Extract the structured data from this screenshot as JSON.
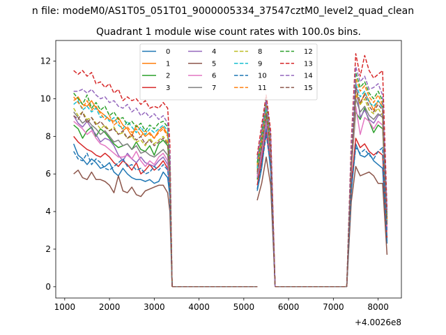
{
  "figure": {
    "suptitle": "n file: modeM0/AS1T05_051T01_9000005334_37547cztM0_level2_quad_clean",
    "offset_text": "+4.0026e8"
  },
  "chart_data": {
    "type": "line",
    "title": "Quadrant 1 module wise count rates with 100.0s bins.",
    "xlabel": "",
    "ylabel": "",
    "x_offset": 400260000,
    "xlim": [
      800,
      8520
    ],
    "ylim": [
      -0.6,
      13.1
    ],
    "xticks": [
      1000,
      2000,
      3000,
      4000,
      5000,
      6000,
      7000,
      8000
    ],
    "yticks": [
      0,
      2,
      4,
      6,
      8,
      10,
      12
    ],
    "grid": false,
    "legend": {
      "placement": "top-center",
      "columns": 4
    },
    "segment_x": [
      [
        1200,
        1300,
        1400,
        1500,
        1600,
        1700,
        1800,
        1900,
        2000,
        2100,
        2200,
        2300,
        2400,
        2500,
        2600,
        2700,
        2800,
        2900,
        3000,
        3100,
        3200,
        3300,
        3350,
        3400
      ],
      [
        3400,
        5300
      ],
      [
        5300,
        5400,
        5500,
        5600,
        5700
      ],
      [
        5700,
        7300
      ],
      [
        7300,
        7400,
        7500,
        7600,
        7700,
        7800,
        7900,
        8000,
        8100,
        8200
      ]
    ],
    "series": [
      {
        "name": "0",
        "color": "#1f77b4",
        "dash": "solid",
        "segments": [
          [
            7.6,
            7.0,
            6.8,
            6.5,
            6.8,
            6.6,
            6.3,
            6.4,
            6.6,
            6.1,
            5.9,
            6.3,
            6.0,
            5.8,
            5.7,
            5.7,
            5.6,
            5.7,
            5.5,
            5.6,
            6.1,
            5.8,
            4.8,
            0
          ],
          [
            0,
            0
          ],
          [
            5.1,
            6.3,
            8.4,
            6.2,
            0
          ],
          [
            0,
            0
          ],
          [
            0,
            5.0,
            7.6,
            7.0,
            6.9,
            7.1,
            6.7,
            6.5,
            6.3,
            2.3
          ]
        ]
      },
      {
        "name": "1",
        "color": "#ff7f0e",
        "dash": "solid",
        "segments": [
          [
            9.9,
            10.1,
            9.7,
            9.6,
            9.9,
            9.5,
            9.3,
            9.1,
            8.9,
            8.8,
            9.0,
            8.6,
            8.4,
            8.0,
            8.6,
            8.3,
            8.0,
            8.2,
            7.9,
            8.3,
            8.5,
            8.1,
            6.5,
            0
          ],
          [
            0,
            0
          ],
          [
            6.4,
            7.8,
            9.6,
            7.5,
            0
          ],
          [
            0,
            0
          ],
          [
            0,
            6.6,
            10.2,
            9.7,
            10.3,
            9.9,
            9.4,
            9.9,
            9.6,
            3.6
          ]
        ]
      },
      {
        "name": "2",
        "color": "#2ca02c",
        "dash": "solid",
        "segments": [
          [
            8.6,
            8.4,
            7.9,
            8.3,
            8.5,
            8.0,
            8.4,
            8.2,
            7.9,
            7.6,
            7.4,
            7.5,
            7.6,
            7.3,
            7.7,
            7.3,
            7.2,
            7.5,
            7.0,
            7.6,
            7.8,
            7.5,
            6.0,
            0
          ],
          [
            0,
            0
          ],
          [
            5.7,
            7.1,
            8.8,
            6.8,
            0
          ],
          [
            0,
            0
          ],
          [
            0,
            6.2,
            9.3,
            8.9,
            9.5,
            8.8,
            8.2,
            8.6,
            8.4,
            3.1
          ]
        ]
      },
      {
        "name": "3",
        "color": "#d62728",
        "dash": "solid",
        "segments": [
          [
            8.0,
            7.7,
            7.5,
            7.3,
            7.2,
            7.0,
            6.9,
            7.1,
            6.9,
            6.6,
            6.4,
            6.7,
            6.5,
            6.2,
            6.6,
            6.0,
            6.2,
            6.5,
            6.2,
            6.4,
            6.7,
            6.3,
            5.2,
            0
          ],
          [
            0,
            0
          ],
          [
            5.4,
            6.7,
            8.2,
            6.6,
            0
          ],
          [
            0,
            0
          ],
          [
            0,
            5.4,
            7.9,
            7.4,
            7.6,
            7.2,
            7.0,
            7.2,
            7.0,
            2.6
          ]
        ]
      },
      {
        "name": "4",
        "color": "#9467bd",
        "dash": "solid",
        "segments": [
          [
            9.1,
            8.7,
            8.5,
            8.8,
            8.4,
            8.1,
            7.7,
            7.9,
            7.8,
            7.5,
            7.0,
            6.7,
            7.1,
            6.8,
            6.6,
            6.9,
            6.6,
            6.5,
            6.4,
            6.7,
            6.9,
            6.5,
            5.3,
            0
          ],
          [
            0,
            0
          ],
          [
            5.8,
            7.0,
            8.7,
            6.9,
            0
          ],
          [
            0,
            0
          ],
          [
            0,
            6.0,
            10.9,
            9.0,
            9.4,
            8.9,
            8.7,
            9.1,
            9.2,
            3.0
          ]
        ]
      },
      {
        "name": "5",
        "color": "#8c564b",
        "dash": "solid",
        "segments": [
          [
            6.0,
            6.2,
            5.8,
            5.7,
            6.1,
            5.7,
            5.7,
            5.6,
            5.4,
            5.0,
            5.9,
            5.1,
            5.0,
            5.3,
            4.9,
            4.8,
            5.1,
            5.2,
            5.3,
            5.4,
            5.4,
            5.0,
            4.0,
            0
          ],
          [
            0,
            0
          ],
          [
            4.6,
            5.5,
            6.9,
            5.4,
            0
          ],
          [
            0,
            0
          ],
          [
            0,
            4.5,
            6.4,
            5.9,
            6.0,
            6.1,
            5.9,
            5.5,
            5.5,
            1.7
          ]
        ]
      },
      {
        "name": "6",
        "color": "#e377c2",
        "dash": "solid",
        "segments": [
          [
            8.8,
            8.6,
            8.4,
            8.1,
            8.3,
            7.9,
            7.6,
            7.5,
            7.3,
            7.1,
            6.9,
            6.9,
            7.0,
            6.8,
            7.2,
            6.7,
            6.4,
            6.7,
            6.5,
            6.9,
            7.1,
            6.7,
            5.4,
            0
          ],
          [
            0,
            0
          ],
          [
            5.9,
            7.2,
            8.9,
            6.9,
            0
          ],
          [
            0,
            0
          ],
          [
            0,
            6.1,
            9.6,
            8.1,
            9.0,
            8.8,
            8.4,
            8.8,
            8.6,
            3.2
          ]
        ]
      },
      {
        "name": "7",
        "color": "#7f7f7f",
        "dash": "solid",
        "segments": [
          [
            9.3,
            9.0,
            8.7,
            8.9,
            8.6,
            8.4,
            8.1,
            8.3,
            8.0,
            7.7,
            7.8,
            7.5,
            7.6,
            7.3,
            7.5,
            7.1,
            7.2,
            7.0,
            6.9,
            7.1,
            7.3,
            7.0,
            5.7,
            0
          ],
          [
            0,
            0
          ],
          [
            6.0,
            7.4,
            9.1,
            7.1,
            0
          ],
          [
            0,
            0
          ],
          [
            0,
            6.3,
            10.0,
            9.3,
            9.6,
            9.1,
            8.9,
            9.2,
            9.0,
            3.3
          ]
        ]
      },
      {
        "name": "8",
        "color": "#bcbd22",
        "dash": "dash",
        "segments": [
          [
            9.5,
            9.1,
            9.3,
            8.9,
            9.0,
            8.7,
            8.4,
            8.6,
            8.3,
            8.5,
            8.1,
            8.2,
            7.9,
            8.0,
            7.7,
            7.8,
            7.5,
            7.9,
            7.6,
            7.8,
            8.0,
            7.7,
            6.1,
            0
          ],
          [
            0,
            0
          ],
          [
            6.2,
            7.6,
            9.3,
            7.3,
            0
          ],
          [
            0,
            0
          ],
          [
            0,
            6.5,
            10.4,
            9.7,
            10.0,
            9.4,
            9.2,
            9.5,
            9.1,
            3.4
          ]
        ]
      },
      {
        "name": "9",
        "color": "#17becf",
        "dash": "dash",
        "segments": [
          [
            9.7,
            9.9,
            9.4,
            9.6,
            9.3,
            9.5,
            9.0,
            9.1,
            8.8,
            9.0,
            8.6,
            8.4,
            8.8,
            8.5,
            8.2,
            8.5,
            8.1,
            8.4,
            8.2,
            8.4,
            8.6,
            8.3,
            6.6,
            0
          ],
          [
            0,
            0
          ],
          [
            6.3,
            7.8,
            9.5,
            7.4,
            0
          ],
          [
            0,
            0
          ],
          [
            0,
            6.7,
            10.8,
            10.1,
            10.4,
            9.8,
            9.6,
            9.9,
            9.5,
            3.5
          ]
        ]
      },
      {
        "name": "10",
        "color": "#1f77b4",
        "dash": "dash",
        "segments": [
          [
            7.2,
            6.8,
            6.7,
            7.1,
            6.5,
            6.8,
            6.6,
            6.3,
            6.2,
            6.4,
            6.6,
            6.8,
            6.4,
            6.5,
            6.2,
            6.3,
            6.0,
            6.1,
            6.4,
            6.2,
            6.5,
            6.2,
            5.0,
            0
          ],
          [
            0,
            0
          ],
          [
            5.2,
            6.4,
            8.1,
            6.4,
            0
          ],
          [
            0,
            0
          ],
          [
            0,
            5.2,
            7.4,
            7.1,
            7.3,
            7.0,
            6.8,
            7.2,
            7.4,
            2.4
          ]
        ]
      },
      {
        "name": "11",
        "color": "#ff7f0e",
        "dash": "dash",
        "segments": [
          [
            10.1,
            9.8,
            9.5,
            9.9,
            9.4,
            9.6,
            9.2,
            8.9,
            9.1,
            8.6,
            8.8,
            8.3,
            8.5,
            8.2,
            8.4,
            8.0,
            8.3,
            8.1,
            7.9,
            8.2,
            8.4,
            8.0,
            6.4,
            0
          ],
          [
            0,
            0
          ],
          [
            6.5,
            7.9,
            9.9,
            7.6,
            0
          ],
          [
            0,
            0
          ],
          [
            0,
            6.9,
            11.1,
            10.4,
            10.7,
            10.1,
            9.8,
            10.2,
            9.7,
            3.6
          ]
        ]
      },
      {
        "name": "12",
        "color": "#2ca02c",
        "dash": "dash",
        "segments": [
          [
            10.3,
            10.0,
            9.7,
            10.2,
            9.5,
            9.8,
            9.4,
            9.6,
            9.1,
            9.3,
            8.9,
            9.0,
            8.6,
            8.8,
            8.5,
            8.7,
            8.3,
            8.6,
            8.4,
            8.7,
            8.8,
            8.5,
            6.8,
            0
          ],
          [
            0,
            0
          ],
          [
            6.6,
            8.1,
            10.0,
            7.8,
            0
          ],
          [
            0,
            0
          ],
          [
            0,
            7.1,
            11.4,
            10.6,
            10.9,
            10.3,
            10.0,
            10.4,
            9.9,
            3.7
          ]
        ]
      },
      {
        "name": "13",
        "color": "#d62728",
        "dash": "dash",
        "segments": [
          [
            11.5,
            11.3,
            11.5,
            11.2,
            11.4,
            10.8,
            10.9,
            10.6,
            10.8,
            10.3,
            10.5,
            9.9,
            10.1,
            9.9,
            10.0,
            9.7,
            9.9,
            9.5,
            9.6,
            9.5,
            9.8,
            9.5,
            7.6,
            0
          ],
          [
            0,
            0
          ],
          [
            7.0,
            8.6,
            10.2,
            8.3,
            0
          ],
          [
            0,
            0
          ],
          [
            0,
            7.7,
            12.4,
            11.2,
            12.3,
            11.5,
            11.1,
            11.3,
            11.5,
            4.1
          ]
        ]
      },
      {
        "name": "14",
        "color": "#9467bd",
        "dash": "dash",
        "segments": [
          [
            10.4,
            10.4,
            10.5,
            10.3,
            10.5,
            10.2,
            10.0,
            10.1,
            9.8,
            9.9,
            9.6,
            9.5,
            9.7,
            9.3,
            9.5,
            9.1,
            9.3,
            9.0,
            9.2,
            8.9,
            9.1,
            8.7,
            7.0,
            0
          ],
          [
            0,
            0
          ],
          [
            6.8,
            8.3,
            9.9,
            8.0,
            0
          ],
          [
            0,
            0
          ],
          [
            0,
            7.3,
            11.7,
            10.9,
            11.2,
            10.5,
            10.6,
            10.8,
            10.2,
            3.9
          ]
        ]
      },
      {
        "name": "15",
        "color": "#8c564b",
        "dash": "dash",
        "segments": [
          [
            9.1,
            8.9,
            9.3,
            8.7,
            9.0,
            8.6,
            8.8,
            8.5,
            8.3,
            8.4,
            8.1,
            8.3,
            7.9,
            8.1,
            7.8,
            8.0,
            7.6,
            7.8,
            7.5,
            7.7,
            7.9,
            7.6,
            6.1,
            0
          ],
          [
            0,
            0
          ],
          [
            6.1,
            7.5,
            9.2,
            7.2,
            0
          ],
          [
            0,
            0
          ],
          [
            0,
            6.4,
            10.6,
            9.8,
            10.2,
            9.6,
            9.3,
            9.7,
            9.4,
            3.3
          ]
        ]
      }
    ]
  }
}
